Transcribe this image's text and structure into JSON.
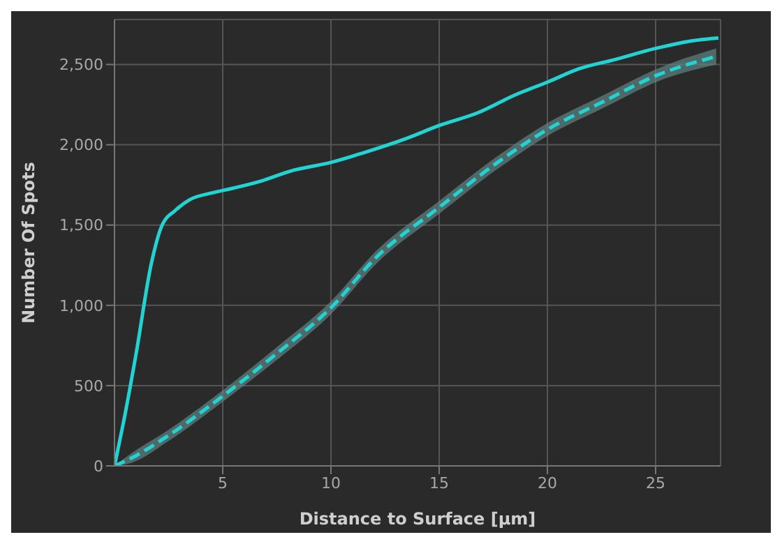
{
  "chart_data": {
    "type": "line",
    "xlabel": "Distance to Surface [µm]",
    "ylabel": "Number Of Spots",
    "xlim": [
      0,
      28
    ],
    "ylim": [
      0,
      2780
    ],
    "xticks": [
      5,
      10,
      15,
      20,
      25
    ],
    "yticks": [
      0,
      500,
      {
        "value": 1000,
        "label": "1,000"
      },
      {
        "value": 1500,
        "label": "1,500"
      },
      {
        "value": 2000,
        "label": "2,000"
      },
      {
        "value": 2500,
        "label": "2,500"
      }
    ],
    "grid": true,
    "series": [
      {
        "color": "#22d3d3",
        "line_style": "solid",
        "x": [
          0,
          0.5,
          1,
          1.7,
          2.2,
          2.8,
          3.5,
          4.5,
          5.5,
          6.8,
          8.1,
          10,
          11.5,
          13.5,
          15,
          16.8,
          18.5,
          20,
          21.5,
          23.1,
          25,
          26.8,
          27.9
        ],
        "values": [
          0,
          330,
          700,
          1260,
          1500,
          1590,
          1660,
          1700,
          1730,
          1775,
          1835,
          1890,
          1950,
          2040,
          2120,
          2200,
          2310,
          2390,
          2475,
          2530,
          2600,
          2650,
          2665
        ]
      },
      {
        "color": "#22d3d3",
        "line_style": "dashed",
        "x": [
          0,
          0.8,
          2.5,
          5,
          7.5,
          10,
          12.1,
          15,
          17.7,
          20,
          22.6,
          25.1,
          27.8
        ],
        "values": [
          0,
          50,
          190,
          435,
          700,
          985,
          1300,
          1610,
          1890,
          2095,
          2270,
          2435,
          2550
        ],
        "lower": [
          0,
          20,
          155,
          400,
          660,
          945,
          1260,
          1570,
          1850,
          2055,
          2230,
          2395,
          2500
        ],
        "upper": [
          0,
          80,
          225,
          470,
          740,
          1025,
          1340,
          1650,
          1930,
          2135,
          2310,
          2475,
          2600
        ]
      }
    ]
  }
}
